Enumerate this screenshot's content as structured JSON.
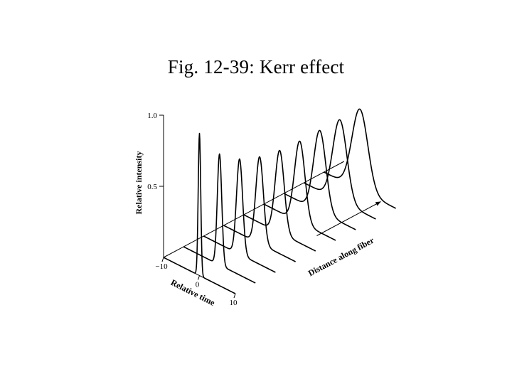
{
  "slide": {
    "title": "Fig. 12-39: Kerr effect"
  },
  "chart_data": {
    "type": "line",
    "style": "3d-waterfall",
    "xlabel": "Relative time",
    "ylabel": "Relative intensity",
    "zlabel": "Distance along fiber",
    "x_ticks": [
      {
        "value": -10,
        "label": "−10"
      },
      {
        "value": 0,
        "label": "0"
      },
      {
        "value": 10,
        "label": "10"
      }
    ],
    "y_ticks": [
      {
        "value": 0.5,
        "label": "0.5"
      },
      {
        "value": 1.0,
        "label": "1.0"
      }
    ],
    "xlim": [
      -10,
      10
    ],
    "ylim": [
      0,
      1.0
    ],
    "grid": false,
    "legend": "none",
    "line_color": "#000000",
    "series": [
      {
        "peak": 1.0,
        "width": 0.35
      },
      {
        "peak": 0.78,
        "width": 0.62
      },
      {
        "peak": 0.67,
        "width": 0.85
      },
      {
        "peak": 0.61,
        "width": 1.05
      },
      {
        "peak": 0.58,
        "width": 1.25
      },
      {
        "peak": 0.57,
        "width": 1.45
      },
      {
        "peak": 0.57,
        "width": 1.7
      },
      {
        "peak": 0.57,
        "width": 1.95
      },
      {
        "peak": 0.57,
        "width": 2.2
      }
    ]
  }
}
